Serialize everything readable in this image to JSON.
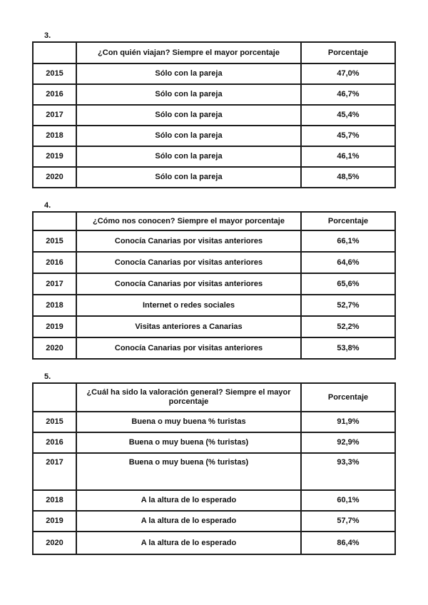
{
  "document": {
    "tables": [
      {
        "number": "3.",
        "question": "¿Con quién viajan? Siempre el mayor porcentaje",
        "value_header": "Porcentaje",
        "rows": [
          {
            "year": "2015",
            "answer": "Sólo con la pareja",
            "value": "47,0%"
          },
          {
            "year": "2016",
            "answer": "Sólo con la pareja",
            "value": "46,7%"
          },
          {
            "year": "2017",
            "answer": "Sólo con la pareja",
            "value": "45,4%"
          },
          {
            "year": "2018",
            "answer": "Sólo con la pareja",
            "value": "45,7%"
          },
          {
            "year": "2019",
            "answer": "Sólo con la pareja",
            "value": "46,1%"
          },
          {
            "year": "2020",
            "answer": "Sólo con la pareja",
            "value": "48,5%"
          }
        ]
      },
      {
        "number": "4.",
        "question": "¿Cómo nos conocen? Siempre el mayor porcentaje",
        "value_header": "Porcentaje",
        "rows": [
          {
            "year": "2015",
            "answer": "Conocía Canarias por visitas anteriores",
            "value": "66,1%"
          },
          {
            "year": "2016",
            "answer": "Conocía Canarias por visitas anteriores",
            "value": "64,6%"
          },
          {
            "year": "2017",
            "answer": "Conocía Canarias por visitas anteriores",
            "value": "65,6%"
          },
          {
            "year": "2018",
            "answer": "Internet o redes sociales",
            "value": "52,7%"
          },
          {
            "year": "2019",
            "answer": "Visitas anteriores a Canarias",
            "value": "52,2%"
          },
          {
            "year": "2020",
            "answer": "Conocía Canarias por visitas anteriores",
            "value": "53,8%"
          }
        ]
      },
      {
        "number": "5.",
        "question": "¿Cuál ha sido la valoración general? Siempre el mayor porcentaje",
        "value_header": "Porcentaje",
        "rows": [
          {
            "year": "2015",
            "answer": "Buena o muy buena % turistas",
            "value": "91,9%"
          },
          {
            "year": "2016",
            "answer": "Buena o muy buena (% turistas)",
            "value": "92,9%"
          },
          {
            "year": "2017",
            "answer": "Buena o muy buena (% turistas)",
            "value": "93,3%"
          },
          {
            "year": "2018",
            "answer": "A la altura de lo esperado",
            "value": "60,1%"
          },
          {
            "year": "2019",
            "answer": "A la altura de lo esperado",
            "value": "57,7%"
          },
          {
            "year": "2020",
            "answer": "A la altura de lo esperado",
            "value": "86,4%"
          }
        ]
      }
    ]
  }
}
